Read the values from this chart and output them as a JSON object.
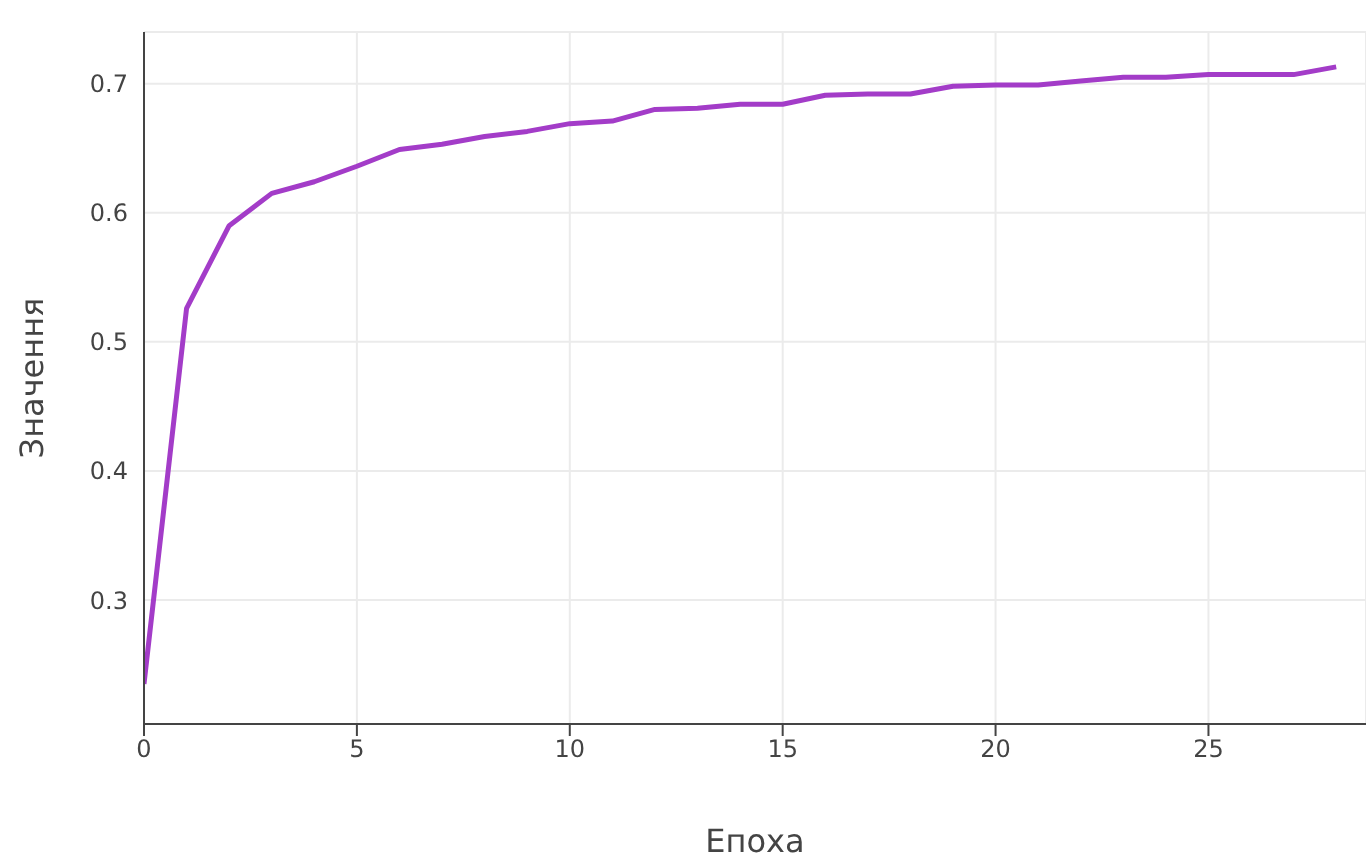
{
  "chart_data": {
    "type": "line",
    "xlabel": "Епоха",
    "ylabel": "Значення",
    "x": [
      0,
      1,
      2,
      3,
      4,
      5,
      6,
      7,
      8,
      9,
      10,
      11,
      12,
      13,
      14,
      15,
      16,
      17,
      18,
      19,
      20,
      21,
      22,
      23,
      24,
      25,
      26,
      27,
      28
    ],
    "series": [
      {
        "color": "#a33cc8",
        "values": [
          0.235,
          0.526,
          0.59,
          0.615,
          0.624,
          0.636,
          0.649,
          0.653,
          0.659,
          0.663,
          0.669,
          0.671,
          0.68,
          0.681,
          0.684,
          0.684,
          0.691,
          0.692,
          0.692,
          0.698,
          0.699,
          0.699,
          0.702,
          0.705,
          0.705,
          0.707,
          0.707,
          0.707,
          0.713
        ]
      }
    ],
    "xlim": [
      0,
      28.7
    ],
    "xticks": [
      0,
      5,
      10,
      15,
      20,
      25
    ],
    "ylim": [
      0.204,
      0.74
    ],
    "yticks": [
      0.3,
      0.4,
      0.5,
      0.6,
      0.7
    ],
    "grid": true,
    "marker": "none",
    "line_style": "solid"
  }
}
